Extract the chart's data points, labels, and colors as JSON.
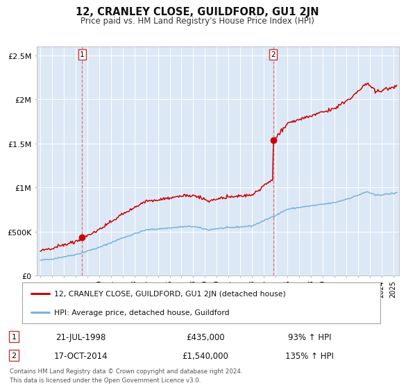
{
  "title": "12, CRANLEY CLOSE, GUILDFORD, GU1 2JN",
  "subtitle": "Price paid vs. HM Land Registry's House Price Index (HPI)",
  "background_color": "#ffffff",
  "plot_bg_color": "#dce8f5",
  "grid_color": "#ffffff",
  "red_color": "#cc0000",
  "blue_color": "#7ab3d8",
  "ylim": [
    0,
    2600000
  ],
  "xlim_start": 1994.7,
  "xlim_end": 2025.5,
  "yticks": [
    0,
    500000,
    1000000,
    1500000,
    2000000,
    2500000
  ],
  "ytick_labels": [
    "£0",
    "£500K",
    "£1M",
    "£1.5M",
    "£2M",
    "£2.5M"
  ],
  "xtick_years": [
    1995,
    1996,
    1997,
    1998,
    1999,
    2000,
    2001,
    2002,
    2003,
    2004,
    2005,
    2006,
    2007,
    2008,
    2009,
    2010,
    2011,
    2012,
    2013,
    2014,
    2015,
    2016,
    2017,
    2018,
    2019,
    2020,
    2021,
    2022,
    2023,
    2024,
    2025
  ],
  "marker1_x": 1998.55,
  "marker1_y": 435000,
  "marker2_x": 2014.79,
  "marker2_y": 1540000,
  "legend_line1": "12, CRANLEY CLOSE, GUILDFORD, GU1 2JN (detached house)",
  "legend_line2": "HPI: Average price, detached house, Guildford",
  "row1_label": "1",
  "row1_date": "21-JUL-1998",
  "row1_price": "£435,000",
  "row1_hpi": "93% ↑ HPI",
  "row2_label": "2",
  "row2_date": "17-OCT-2014",
  "row2_price": "£1,540,000",
  "row2_hpi": "135% ↑ HPI",
  "footer": "Contains HM Land Registry data © Crown copyright and database right 2024.\nThis data is licensed under the Open Government Licence v3.0."
}
